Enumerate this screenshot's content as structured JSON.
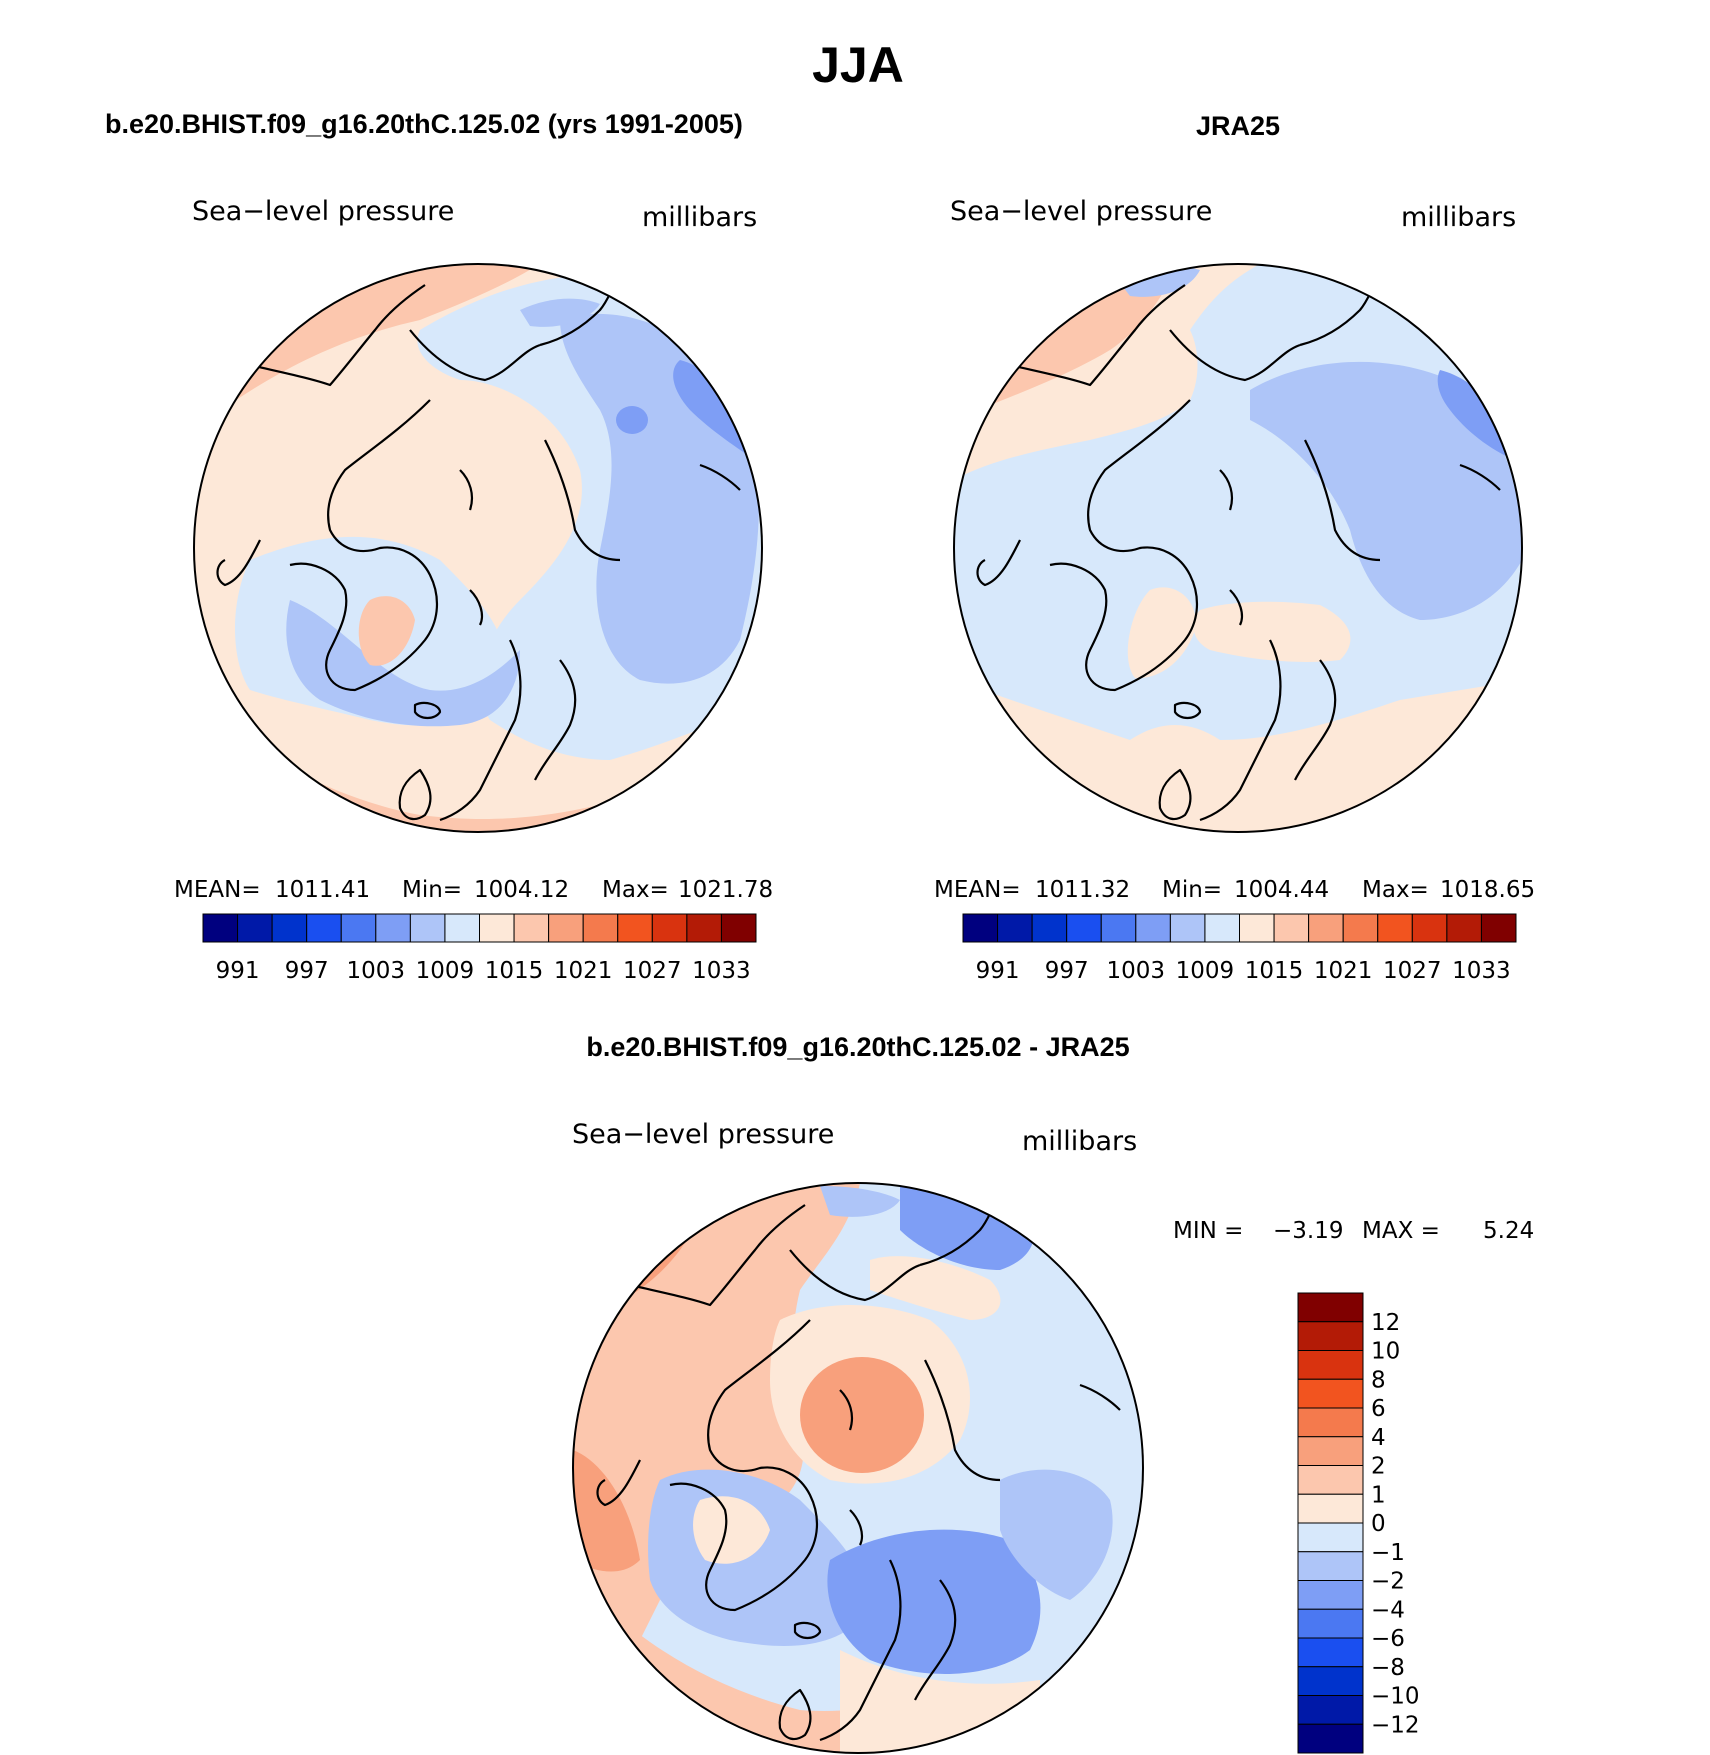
{
  "title": "JJA",
  "panels": [
    {
      "id": "model",
      "header": "b.e20.BHIST.f09_g16.20thC.125.02 (yrs 1991-2005)",
      "variable": "Sea−level pressure",
      "units": "millibars",
      "stats": {
        "mean_label": "MEAN=",
        "mean": "1011.41",
        "min_label": "Min=",
        "min": "1004.12",
        "max_label": "Max=",
        "max": "1021.78"
      }
    },
    {
      "id": "obs",
      "header": "JRA25",
      "variable": "Sea−level pressure",
      "units": "millibars",
      "stats": {
        "mean_label": "MEAN=",
        "mean": "1011.32",
        "min_label": "Min=",
        "min": "1004.44",
        "max_label": "Max=",
        "max": "1018.65"
      }
    },
    {
      "id": "diff",
      "header": "b.e20.BHIST.f09_g16.20thC.125.02 - JRA25",
      "variable": "Sea−level pressure",
      "units": "millibars",
      "stats": {
        "min_label": "MIN =",
        "min": "−3.19",
        "max_label": "MAX =",
        "max": "5.24"
      }
    }
  ],
  "abs_colorbar": {
    "colors": [
      "#00007f",
      "#0019a8",
      "#0033cc",
      "#1a4ff0",
      "#4b78f2",
      "#7e9ef5",
      "#aec5f8",
      "#d7e8fb",
      "#fde8d8",
      "#fcc7ae",
      "#f8a07c",
      "#f47a4d",
      "#f2541f",
      "#d9330f",
      "#b31b06",
      "#800000"
    ],
    "labels": [
      "991",
      "997",
      "1003",
      "1009",
      "1015",
      "1021",
      "1027",
      "1033"
    ]
  },
  "diff_colorbar": {
    "colors": [
      "#800000",
      "#b31b06",
      "#d9330f",
      "#f2541f",
      "#f47a4d",
      "#f8a07c",
      "#fcc7ae",
      "#fde8d8",
      "#d7e8fb",
      "#aec5f8",
      "#7e9ef5",
      "#4b78f2",
      "#1a4ff0",
      "#0033cc",
      "#0019a8",
      "#00007f"
    ],
    "labels": [
      "12",
      "10",
      "8",
      "6",
      "4",
      "2",
      "1",
      "0",
      "−1",
      "−2",
      "−4",
      "−6",
      "−8",
      "−10",
      "−12"
    ]
  }
}
